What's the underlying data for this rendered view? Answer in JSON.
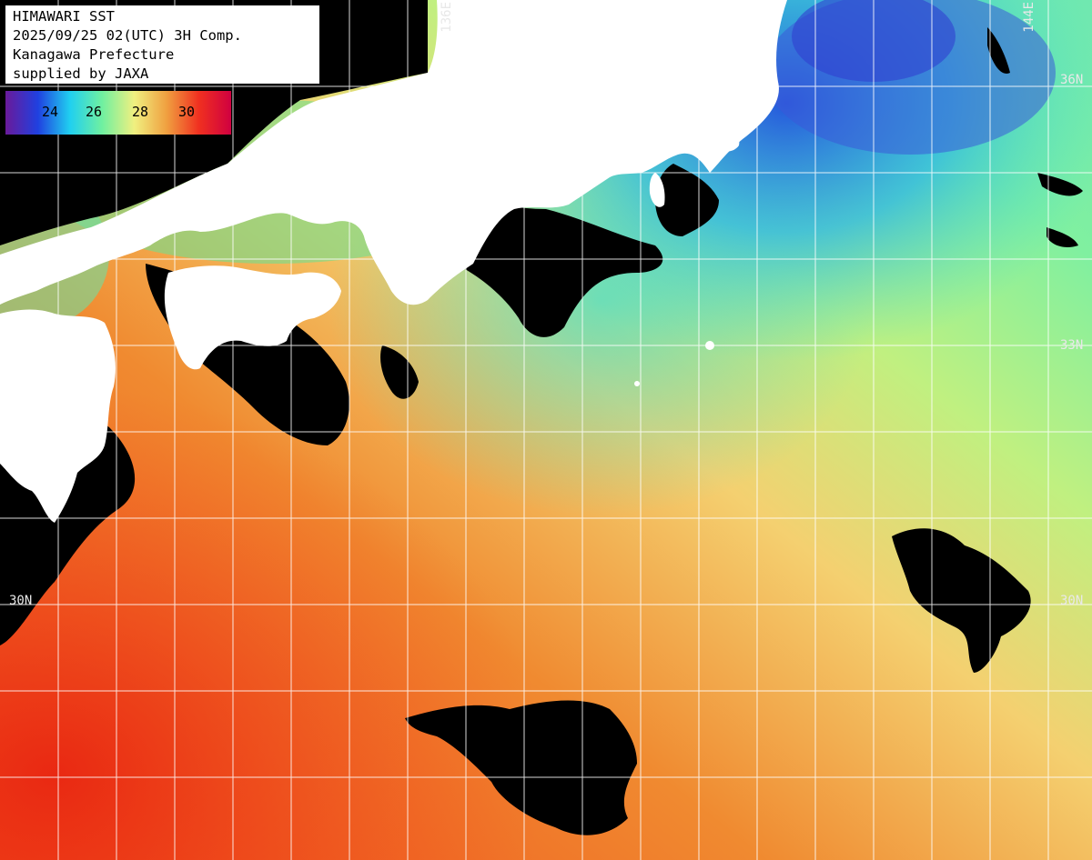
{
  "title": {
    "line1": "HIMAWARI SST",
    "line2": "2025/09/25 02(UTC) 3H Comp.",
    "line3": "Kanagawa Prefecture",
    "line4": "supplied by JAXA"
  },
  "legend": {
    "ticks": [
      "24",
      "26",
      "28",
      "30"
    ],
    "colors": [
      "#6a1a9a",
      "#2040e0",
      "#20d0f0",
      "#70f0a0",
      "#f0f080",
      "#f0a040",
      "#f03020",
      "#d00040"
    ]
  },
  "grid_labels": {
    "lon_136": "136E",
    "lon_144": "144E",
    "lat_36_right": "36N",
    "lat_33_right": "33N",
    "lat_30_right": "30N",
    "lat_30_left": "30N"
  },
  "colors": {
    "land": "#ffffff",
    "cloud": "#000000",
    "grid": "#ffffff"
  }
}
